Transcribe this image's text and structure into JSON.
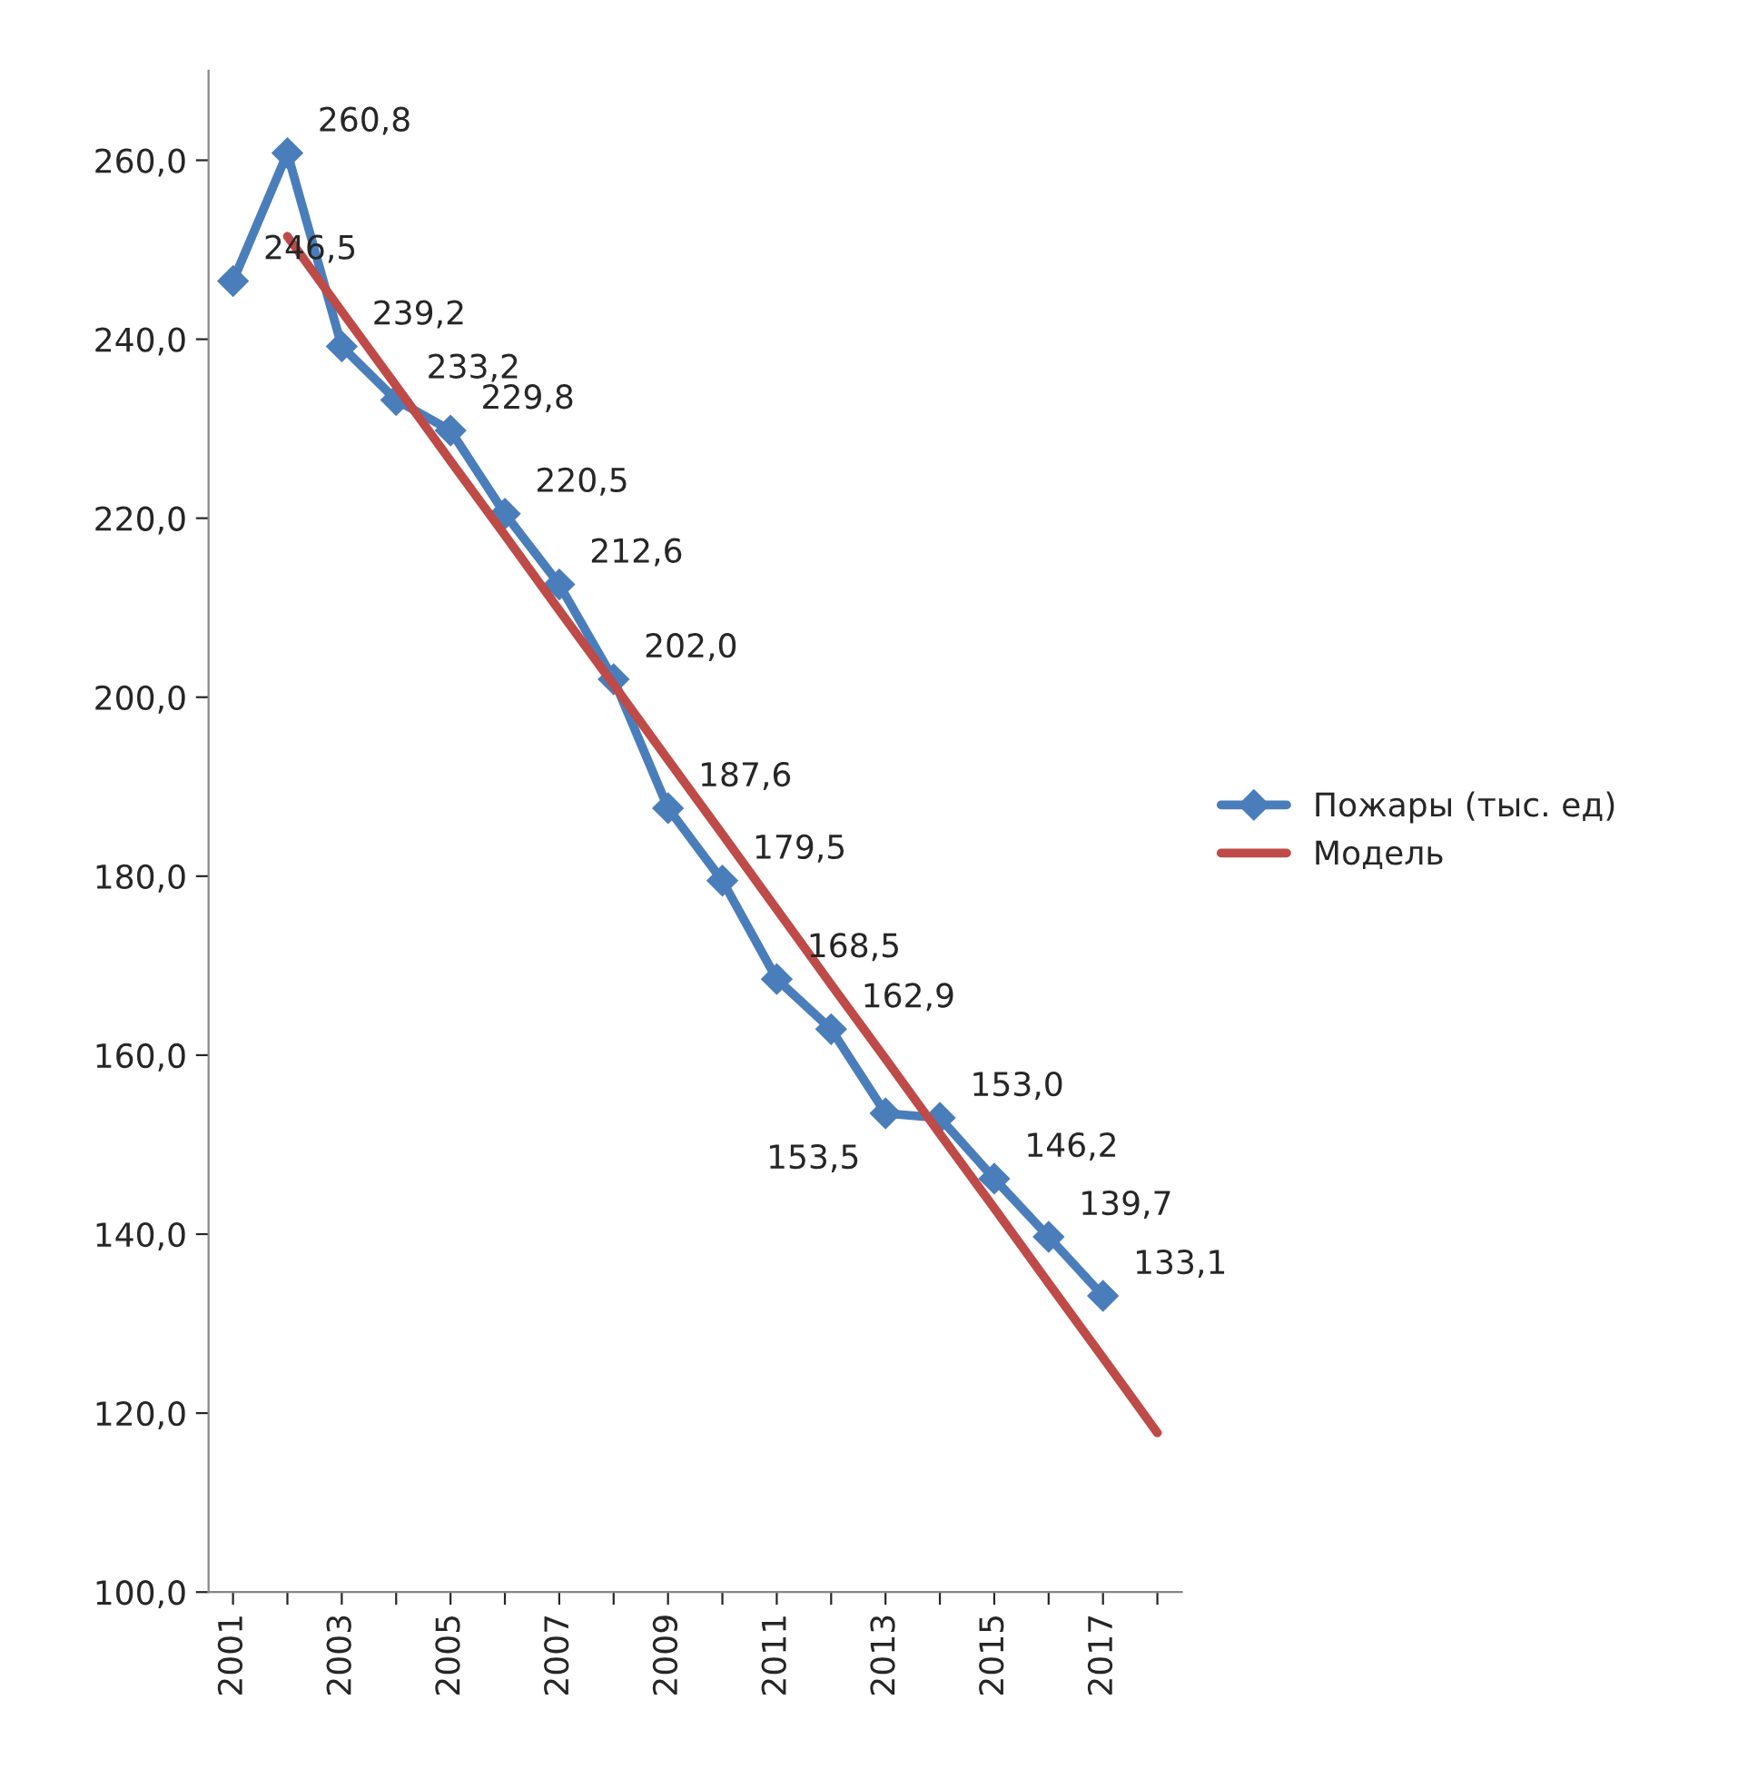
{
  "chart_data": {
    "type": "line",
    "categories": [
      "2001",
      null,
      "2003",
      null,
      "2005",
      null,
      "2007",
      null,
      "2009",
      null,
      "2011",
      null,
      "2013",
      null,
      "2015",
      null,
      "2017",
      null
    ],
    "series": [
      {
        "name": "Пожары (тыс. ед)",
        "color": "#4a7ebb",
        "marker": "diamond",
        "value_labels": [
          "246,5",
          "260,8",
          "239,2",
          "233,2",
          "229,8",
          "220,5",
          "212,6",
          "202,0",
          "187,6",
          "179,5",
          "168,5",
          "162,9",
          "153,5",
          "153,0",
          "146,2",
          "139,7",
          "133,1",
          null
        ],
        "values": [
          246.5,
          260.8,
          239.2,
          233.2,
          229.8,
          220.5,
          212.6,
          202.0,
          187.6,
          179.5,
          168.5,
          162.9,
          153.5,
          153.0,
          146.2,
          139.7,
          133.1,
          null
        ]
      },
      {
        "name": "Модель",
        "color": "#be4b48",
        "marker": "none",
        "values": [
          null,
          251.5,
          243.1,
          234.8,
          226.4,
          218.1,
          209.7,
          201.4,
          193.0,
          184.7,
          176.3,
          167.9,
          159.6,
          151.2,
          142.9,
          134.5,
          126.2,
          117.8
        ]
      }
    ],
    "ylim": [
      100,
      270
    ],
    "yticks": [
      {
        "value": 100,
        "label": "100,0"
      },
      {
        "value": 120,
        "label": "120,0"
      },
      {
        "value": 140,
        "label": "140,0"
      },
      {
        "value": 160,
        "label": "160,0"
      },
      {
        "value": 180,
        "label": "180,0"
      },
      {
        "value": 200,
        "label": "200,0"
      },
      {
        "value": 220,
        "label": "220,0"
      },
      {
        "value": 240,
        "label": "240,0"
      },
      {
        "value": 260,
        "label": "260,0"
      }
    ],
    "grid": false,
    "legend": "right",
    "line_style": "solid"
  }
}
